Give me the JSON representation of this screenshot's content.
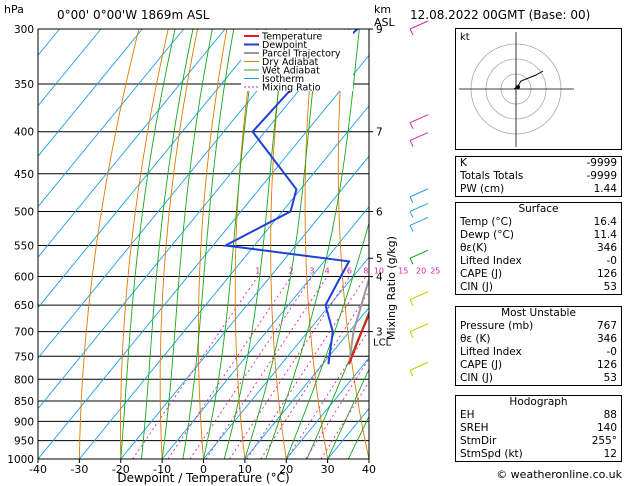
{
  "header": {
    "location": "0°00' 0°00'W 1869m ASL",
    "date": "12.08.2022 00GMT (Base: 00)",
    "hpa_label": "hPa",
    "km_label": "km\nASL"
  },
  "chart_data": {
    "type": "skew-t",
    "xlabel": "Dewpoint / Temperature (°C)",
    "ylabel": "Mixing Ratio (g/kg)",
    "pressure_levels": [
      300,
      350,
      400,
      450,
      500,
      550,
      600,
      650,
      700,
      750,
      800,
      850,
      900,
      950,
      1000
    ],
    "x_ticks": [
      -40,
      -30,
      -20,
      -10,
      0,
      10,
      20,
      30,
      40
    ],
    "km_ticks": [
      {
        "p": 300,
        "km": "9"
      },
      {
        "p": 400,
        "km": "7"
      },
      {
        "p": 500,
        "km": "6"
      },
      {
        "p": 570,
        "km": "5"
      },
      {
        "p": 600,
        "km": "4"
      },
      {
        "p": 700,
        "km": "3"
      }
    ],
    "mixing_ratio_labels": [
      "1",
      "2",
      "3",
      "4",
      "6",
      "8",
      "10",
      "15",
      "20",
      "25"
    ],
    "legend": [
      "Temperature",
      "Dewpoint",
      "Parcel Trajectory",
      "Dry Adiabat",
      "Wet Adiabat",
      "Isotherm",
      "Mixing Ratio"
    ],
    "colors": {
      "temperature": "#e31b1b",
      "dewpoint": "#1f3fd6",
      "parcel": "#999999",
      "dry_adiabat": "#e07a00",
      "wet_adiabat": "#17a81a",
      "isotherm": "#1aa0e6",
      "mixing_ratio": "#d8249e"
    },
    "temperature": [
      {
        "p": 767,
        "t": 16.4
      },
      {
        "p": 700,
        "t": 13.0
      },
      {
        "p": 650,
        "t": 10.5
      },
      {
        "p": 600,
        "t": 5.0
      },
      {
        "p": 575,
        "t": 2.0
      },
      {
        "p": 560,
        "t": 3.0
      },
      {
        "p": 500,
        "t": -5.0
      },
      {
        "p": 450,
        "t": -11.0
      },
      {
        "p": 400,
        "t": -18.0
      },
      {
        "p": 370,
        "t": -23.0
      }
    ],
    "dewpoint": [
      {
        "p": 767,
        "t": 11.4
      },
      {
        "p": 700,
        "t": 6.0
      },
      {
        "p": 650,
        "t": -1.0
      },
      {
        "p": 600,
        "t": -3.0
      },
      {
        "p": 575,
        "t": -4.0
      },
      {
        "p": 550,
        "t": -37.0
      },
      {
        "p": 500,
        "t": -28.0
      },
      {
        "p": 470,
        "t": -31.0
      },
      {
        "p": 400,
        "t": -53.0
      },
      {
        "p": 350,
        "t": -52.0
      },
      {
        "p": 300,
        "t": -48.0
      }
    ],
    "parcel": [
      {
        "p": 767,
        "t": 16.4
      },
      {
        "p": 700,
        "t": 11.0
      },
      {
        "p": 600,
        "t": 4.0
      },
      {
        "p": 500,
        "t": -5.0
      },
      {
        "p": 400,
        "t": -18.0
      }
    ],
    "lcl_label": "LCL",
    "hodograph_label": "kt"
  },
  "indices": {
    "rows": [
      {
        "label": "K",
        "value": "-9999"
      },
      {
        "label": "Totals Totals",
        "value": "-9999"
      },
      {
        "label": "PW (cm)",
        "value": "1.44"
      }
    ]
  },
  "surface": {
    "title": "Surface",
    "rows": [
      {
        "label": "Temp (°C)",
        "value": "16.4"
      },
      {
        "label": "Dewp (°C)",
        "value": "11.4"
      },
      {
        "label": "θε(K)",
        "value": "346"
      },
      {
        "label": "Lifted Index",
        "value": "-0"
      },
      {
        "label": "CAPE (J)",
        "value": "126"
      },
      {
        "label": "CIN (J)",
        "value": "53"
      }
    ]
  },
  "most_unstable": {
    "title": "Most Unstable",
    "rows": [
      {
        "label": "Pressure (mb)",
        "value": "767"
      },
      {
        "label": "θε (K)",
        "value": "346"
      },
      {
        "label": "Lifted Index",
        "value": "-0"
      },
      {
        "label": "CAPE (J)",
        "value": "126"
      },
      {
        "label": "CIN (J)",
        "value": "53"
      }
    ]
  },
  "hodograph": {
    "title": "Hodograph",
    "rows": [
      {
        "label": "EH",
        "value": "88"
      },
      {
        "label": "SREH",
        "value": "140"
      },
      {
        "label": "StmDir",
        "value": "255°"
      },
      {
        "label": "StmSpd (kt)",
        "value": "12"
      }
    ]
  },
  "copyright": "© weatheronline.co.uk"
}
